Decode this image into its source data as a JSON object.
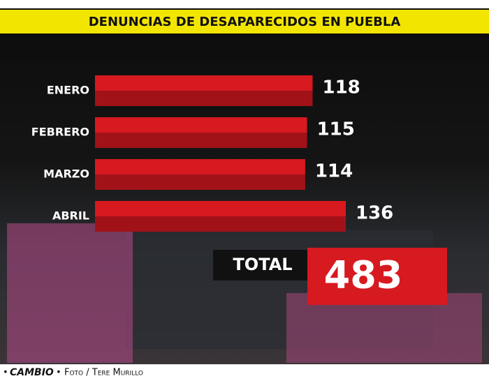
{
  "chart_data": {
    "type": "bar",
    "orientation": "horizontal",
    "title": "DENUNCIAS DE DESAPARECIDOS EN PUEBLA",
    "categories": [
      "ENERO",
      "FEBRERO",
      "MARZO",
      "ABRIL"
    ],
    "values": [
      118,
      115,
      114,
      136
    ],
    "color": "#d71920",
    "total_label": "TOTAL",
    "total": 483
  },
  "footer": {
    "brand": "CAMBIO",
    "credit": "Foto / Tere Murillo"
  }
}
